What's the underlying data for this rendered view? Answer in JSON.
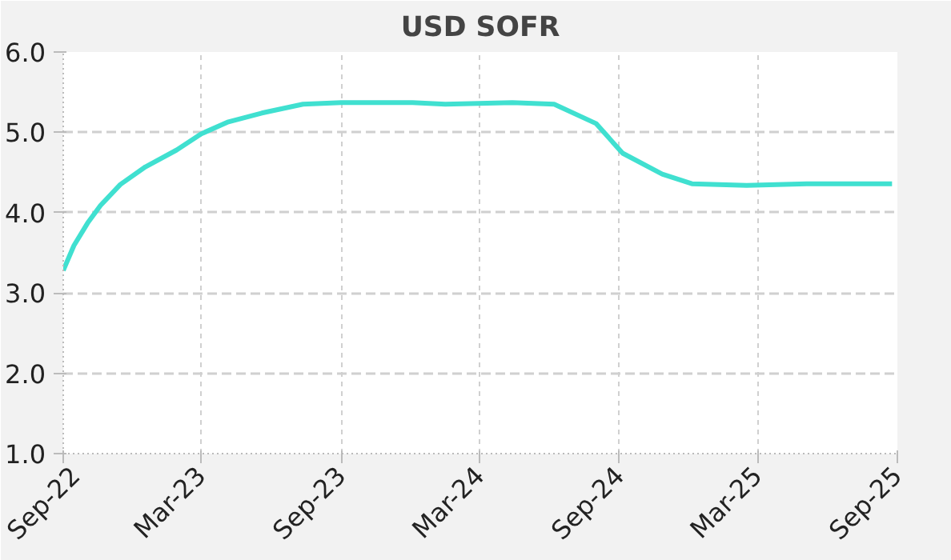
{
  "chart_data": {
    "type": "line",
    "title": "USD SOFR",
    "x": [
      "2022-09-01",
      "2022-09-15",
      "2022-10-03",
      "2022-10-20",
      "2022-11-15",
      "2022-12-18",
      "2023-01-28",
      "2023-03-01",
      "2023-04-06",
      "2023-05-20",
      "2023-07-13",
      "2023-09-01",
      "2023-12-04",
      "2024-01-16",
      "2024-04-13",
      "2024-06-07",
      "2024-08-01",
      "2024-09-05",
      "2024-10-27",
      "2024-12-05",
      "2025-02-15",
      "2025-05-05",
      "2025-08-25"
    ],
    "series": [
      {
        "color": "#40e0d0",
        "values": [
          3.28,
          3.59,
          3.87,
          4.09,
          4.35,
          4.57,
          4.78,
          4.98,
          5.13,
          5.24,
          5.35,
          5.37,
          5.37,
          5.35,
          5.37,
          5.35,
          5.11,
          4.74,
          4.48,
          4.36,
          4.34,
          4.36,
          4.36
        ]
      }
    ],
    "xlim": [
      "2022-09-01",
      "2025-09-01"
    ],
    "xticks": [
      {
        "value": "2022-09-01",
        "label": "Sep-22"
      },
      {
        "value": "2023-03-01",
        "label": "Mar-23"
      },
      {
        "value": "2023-09-01",
        "label": "Sep-23"
      },
      {
        "value": "2024-03-01",
        "label": "Mar-24"
      },
      {
        "value": "2024-09-01",
        "label": "Sep-24"
      },
      {
        "value": "2025-03-01",
        "label": "Mar-25"
      },
      {
        "value": "2025-09-01",
        "label": "Sep-25"
      }
    ],
    "ylim": [
      1,
      6
    ],
    "yticks": [
      {
        "value": 1,
        "label": "1.0"
      },
      {
        "value": 2,
        "label": "2.0"
      },
      {
        "value": 3,
        "label": "3.0"
      },
      {
        "value": 4,
        "label": "4.0"
      },
      {
        "value": 5,
        "label": "5.0"
      },
      {
        "value": 6,
        "label": "6.0"
      }
    ],
    "grid": true
  }
}
